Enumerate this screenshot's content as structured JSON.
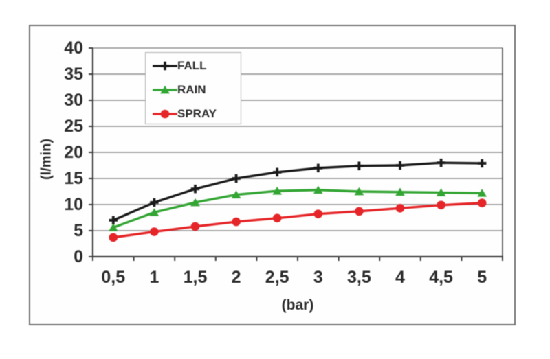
{
  "figure": {
    "background": "#ffffff",
    "frame_border_color": "#6f6f6f"
  },
  "chart_data": {
    "type": "line",
    "title": "",
    "xlabel": "(bar)",
    "ylabel": "(l/min)",
    "categories": [
      "0,5",
      "1",
      "1,5",
      "2",
      "2,5",
      "3",
      "3,5",
      "4",
      "4,5",
      "5"
    ],
    "y_ticks": [
      "0",
      "5",
      "10",
      "15",
      "20",
      "25",
      "30",
      "35",
      "40"
    ],
    "ylim": [
      0,
      40
    ],
    "grid": "horizontal",
    "legend_position": "top-left-inside",
    "series": [
      {
        "name": "FALL",
        "color": "#1a1a1a",
        "marker": "plus",
        "values": [
          7.0,
          10.4,
          13.0,
          15.0,
          16.2,
          17.0,
          17.4,
          17.5,
          18.0,
          17.9
        ]
      },
      {
        "name": "RAIN",
        "color": "#33a533",
        "marker": "triangle",
        "values": [
          5.6,
          8.5,
          10.4,
          11.9,
          12.6,
          12.8,
          12.5,
          12.4,
          12.3,
          12.2
        ]
      },
      {
        "name": "SPRAY",
        "color": "#e52528",
        "marker": "circle",
        "values": [
          3.7,
          4.8,
          5.8,
          6.7,
          7.4,
          8.2,
          8.7,
          9.3,
          9.9,
          10.3
        ]
      }
    ]
  }
}
